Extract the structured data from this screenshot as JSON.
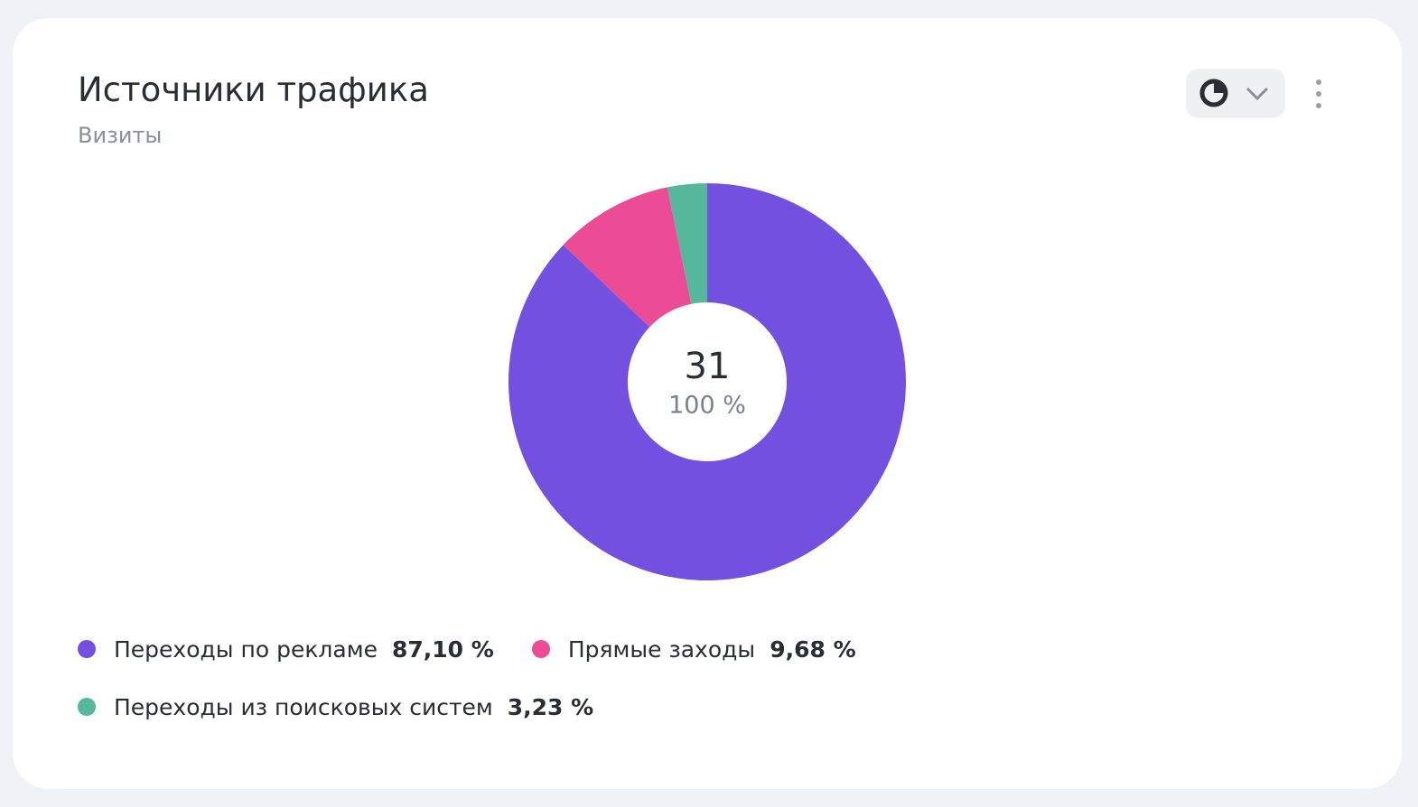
{
  "chart_data": {
    "type": "donut",
    "title": "Источники трафика",
    "subtitle": "Визиты",
    "center": {
      "value": 31,
      "share": 100,
      "share_label": "100 %"
    },
    "categories": [
      "Переходы по рекламе",
      "Прямые заходы",
      "Переходы из поисковых систем"
    ],
    "values": [
      87.1,
      9.68,
      3.23
    ],
    "value_labels": [
      "87,10 %",
      "9,68 %",
      "3,23 %"
    ],
    "colors": [
      "#7350df",
      "#ec4b96",
      "#56b89b"
    ]
  }
}
